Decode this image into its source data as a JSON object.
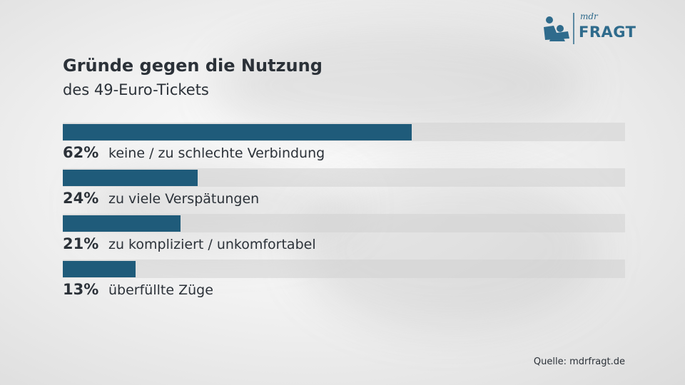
{
  "brand": {
    "small": "mdr",
    "main": "FRAGT",
    "color": "#2f6b8c"
  },
  "chart_data": {
    "type": "bar",
    "orientation": "horizontal",
    "title": "Gründe gegen die Nutzung",
    "subtitle": "des 49-Euro-Tickets",
    "xlim": [
      0,
      100
    ],
    "unit": "%",
    "bar_color": "#1f5b7a",
    "categories": [
      "keine / zu schlechte Verbindung",
      "zu viele Verspätungen",
      "zu kompliziert / unkomfortabel",
      "überfüllte Züge"
    ],
    "values": [
      62,
      24,
      21,
      13
    ],
    "value_labels": [
      "62%",
      "24%",
      "21%",
      "13%"
    ]
  },
  "source": "Quelle: mdrfragt.de"
}
